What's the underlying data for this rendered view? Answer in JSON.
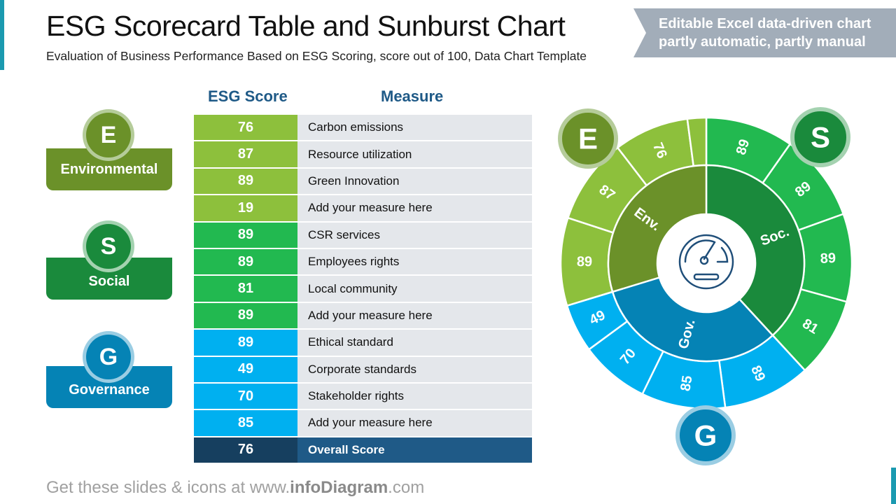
{
  "header": {
    "title": "ESG Scorecard Table and Sunburst Chart",
    "subtitle": "Evaluation of Business Performance Based on ESG Scoring, score out of 100, Data Chart Template",
    "tag_line1": "Editable Excel data-driven chart",
    "tag_line2": "partly automatic, partly manual"
  },
  "table": {
    "score_header": "ESG Score",
    "measure_header": "Measure",
    "rows": [
      {
        "score": "76",
        "measure": "Carbon emissions",
        "pillar": "E"
      },
      {
        "score": "87",
        "measure": "Resource utilization",
        "pillar": "E"
      },
      {
        "score": "89",
        "measure": "Green Innovation",
        "pillar": "E"
      },
      {
        "score": "19",
        "measure": "Add your measure here",
        "pillar": "E"
      },
      {
        "score": "89",
        "measure": "CSR services",
        "pillar": "S"
      },
      {
        "score": "89",
        "measure": "Employees rights",
        "pillar": "S"
      },
      {
        "score": "81",
        "measure": "Local community",
        "pillar": "S"
      },
      {
        "score": "89",
        "measure": "Add your measure here",
        "pillar": "S"
      },
      {
        "score": "89",
        "measure": "Ethical standard",
        "pillar": "G"
      },
      {
        "score": "49",
        "measure": "Corporate standards",
        "pillar": "G"
      },
      {
        "score": "70",
        "measure": "Stakeholder rights",
        "pillar": "G"
      },
      {
        "score": "85",
        "measure": "Add your measure here",
        "pillar": "G"
      }
    ],
    "overall": {
      "score": "76",
      "measure": "Overall Score"
    }
  },
  "pillars": [
    {
      "letter": "E",
      "label": "Environmental"
    },
    {
      "letter": "S",
      "label": "Social"
    },
    {
      "letter": "G",
      "label": "Governance"
    }
  ],
  "colors": {
    "env_light": "#8dc03c",
    "env_dark": "#6b9129",
    "soc_light": "#22b950",
    "soc_dark": "#1a8a3c",
    "gov_light": "#00b0f0",
    "gov_dark": "#0583b5",
    "overall_dark": "#163f5f",
    "overall": "#1f5a87"
  },
  "chart_data": {
    "type": "sunburst",
    "center_icon": "speedometer-icon",
    "groups": [
      {
        "name": "Soc.",
        "letter": "S",
        "values": [
          89,
          89,
          89,
          81
        ]
      },
      {
        "name": "Gov.",
        "letter": "G",
        "values": [
          89,
          85,
          70,
          49
        ]
      },
      {
        "name": "Env.",
        "letter": "E",
        "values": [
          89,
          87,
          76,
          19
        ],
        "labeled": [
          true,
          true,
          true,
          false
        ]
      }
    ]
  },
  "footer": {
    "prefix": "Get these slides & icons at www.",
    "brand": "infoDiagram",
    "suffix": ".com"
  }
}
